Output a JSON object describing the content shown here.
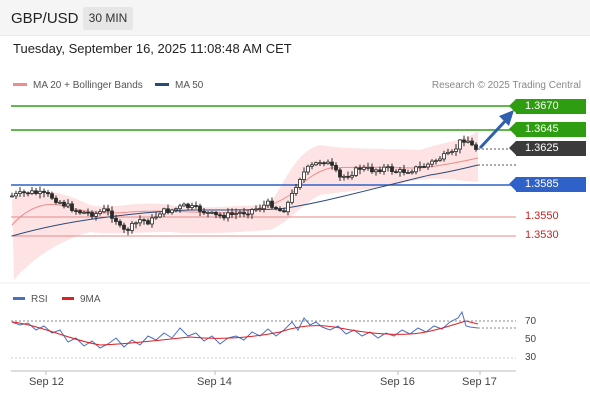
{
  "header": {
    "symbol": "GBP/USD",
    "timeframe": "30 MIN",
    "timestamp": "Tuesday, September 16, 2025 11:08:48 AM CET"
  },
  "legend": {
    "items": [
      {
        "label": "MA 20 + Bollinger Bands",
        "color": "#f08b8b"
      },
      {
        "label": "MA 50",
        "color": "#2b4a7a"
      }
    ],
    "credit": "Research © 2025 Trading Central"
  },
  "levels": [
    {
      "label": "1.3670",
      "style": "green"
    },
    {
      "label": "1.3645",
      "style": "green"
    },
    {
      "label": "1.3625",
      "style": "dark"
    },
    {
      "label": "1.3585",
      "style": "blue"
    },
    {
      "label": "1.3550",
      "style": "red"
    },
    {
      "label": "1.3530",
      "style": "red"
    }
  ],
  "rsi": {
    "legend": [
      {
        "label": "RSI",
        "color": "#4a6fc2"
      },
      {
        "label": "9MA",
        "color": "#e02020"
      }
    ],
    "levels": [
      "70",
      "50",
      "30"
    ]
  },
  "x_axis": {
    "labels": [
      "Sep 12",
      "Sep 14",
      "Sep 16",
      "Sep 17"
    ]
  },
  "colors": {
    "support": "#2e9d12",
    "pivot": "#2f62c9",
    "resistance": "#cc2222",
    "up_candle": "#ffffff",
    "down_candle": "#2b2b2b",
    "arrow": "#2f5fae"
  }
}
